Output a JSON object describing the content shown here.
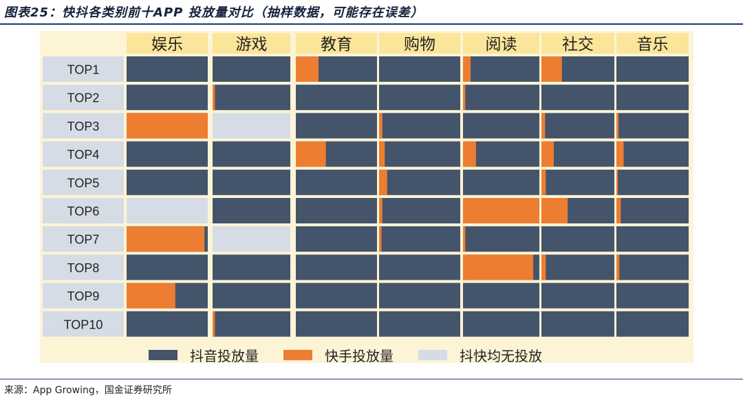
{
  "figure": {
    "title": "图表25：快抖各类别前十APP 投放量对比（抽样数据，可能存在误差）",
    "source": "来源：App Growing，国金证券研究所"
  },
  "chart_data": {
    "type": "heatmap",
    "categories": [
      "娱乐",
      "游戏",
      "教育",
      "购物",
      "阅读",
      "社交",
      "音乐"
    ],
    "rows": [
      "TOP1",
      "TOP2",
      "TOP3",
      "TOP4",
      "TOP5",
      "TOP6",
      "TOP7",
      "TOP8",
      "TOP9",
      "TOP10"
    ],
    "kuaishou_share": [
      [
        0,
        0,
        0.28,
        0,
        0.1,
        0.28,
        0
      ],
      [
        0,
        0.03,
        0,
        0,
        0.03,
        0,
        0
      ],
      [
        1,
        null,
        0,
        0.04,
        0,
        0.05,
        0.03
      ],
      [
        0,
        0,
        0.37,
        0.07,
        0.17,
        0.17,
        0.1
      ],
      [
        0,
        0,
        0,
        0.1,
        0,
        0.06,
        0.02
      ],
      [
        null,
        0,
        0,
        0.04,
        1,
        0.36,
        0.06
      ],
      [
        0.96,
        null,
        0,
        0.03,
        0.03,
        0,
        0
      ],
      [
        0,
        0,
        0,
        0,
        0.92,
        0.06,
        0.04
      ],
      [
        0.6,
        0,
        0,
        0,
        0,
        0,
        0
      ],
      [
        0,
        0.03,
        0,
        0,
        0,
        0,
        0
      ]
    ],
    "legend": [
      {
        "key": "douyin",
        "label": "抖音投放量",
        "color": "#44546a"
      },
      {
        "key": "kuaishou",
        "label": "快手投放量",
        "color": "#ed7d31"
      },
      {
        "key": "none",
        "label": "抖快均无投放",
        "color": "#d6dce5"
      }
    ],
    "colors": {
      "douyin": "#44546a",
      "kuaishou": "#ed7d31",
      "none": "#d6dce5",
      "header_bg": "#fbe59a",
      "row_label_bg": "#d6dce5",
      "panel_bg": "#fdf4d6"
    }
  }
}
